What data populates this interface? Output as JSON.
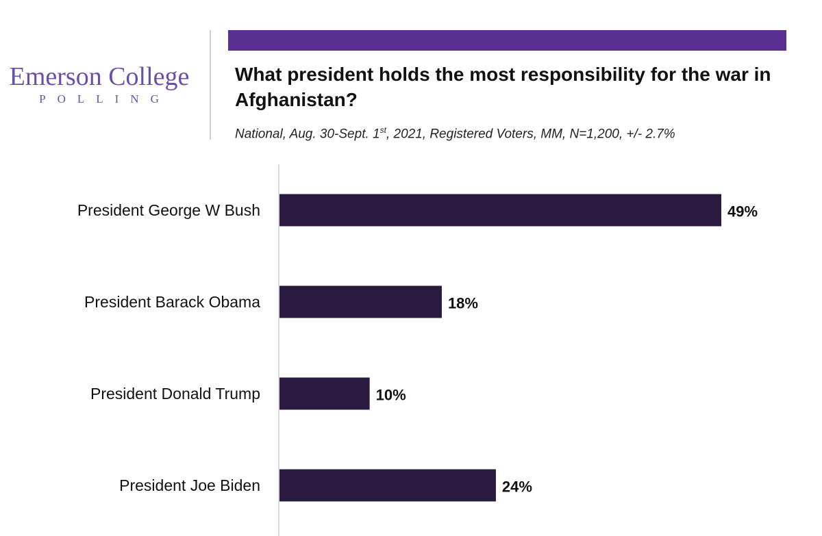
{
  "logo": {
    "name": "Emerson College",
    "sub": "POLLING"
  },
  "title": "What president holds the most responsibility for the war in Afghanistan?",
  "subtitle": {
    "before_sup": "National, Aug. 30-Sept. 1",
    "sup": "st",
    "after_sup": ", 2021, Registered Voters, MM, N=1,200, +/- 2.7%"
  },
  "colors": {
    "accent": "#5b2e91",
    "bar": "#2b1a40",
    "axis": "#d9d9d9"
  },
  "chart_data": {
    "type": "bar",
    "orientation": "horizontal",
    "categories": [
      "President George W Bush",
      "President Barack Obama",
      "President Donald Trump",
      "President Joe Biden"
    ],
    "values": [
      49,
      18,
      10,
      24
    ],
    "value_labels": [
      "49%",
      "18%",
      "10%",
      "24%"
    ],
    "xlim": [
      0,
      52
    ],
    "grid": false
  }
}
